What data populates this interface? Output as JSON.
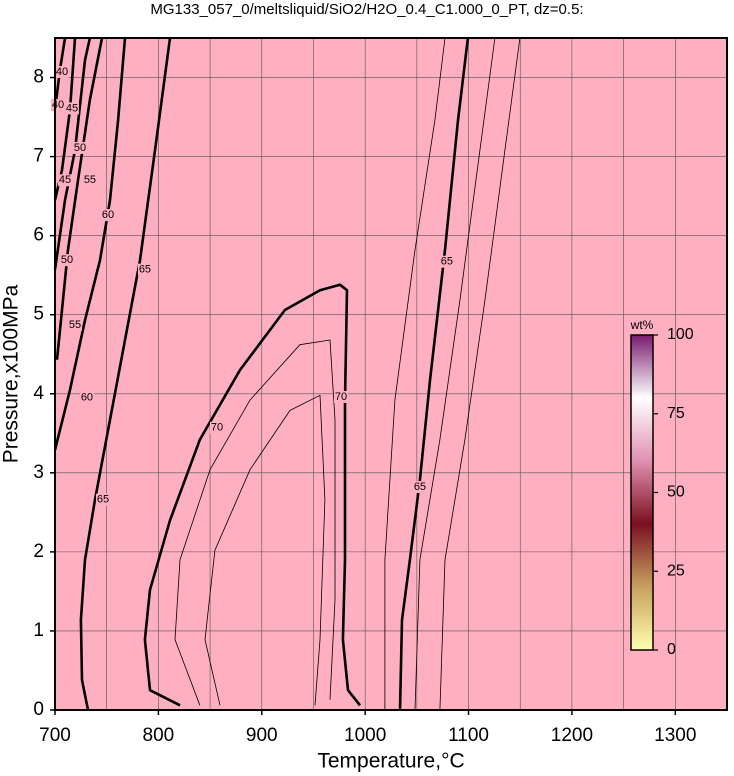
{
  "chart_data": {
    "type": "contour",
    "title": "MG133_057_0/meltsliquid/SiO2/H2O_0.4_C1.000_0_PT, dz=0.5:",
    "x_label": "Temperature,°C",
    "y_label": "Pressure,x100MPa",
    "xlim": [
      700,
      1350
    ],
    "ylim": [
      0,
      8.5
    ],
    "xticks": [
      700,
      800,
      900,
      1000,
      1100,
      1200,
      1300
    ],
    "xgrid": [
      750,
      850,
      950,
      1050,
      1150,
      1250
    ],
    "yticks": [
      0,
      1,
      2,
      3,
      4,
      5,
      6,
      7,
      8
    ],
    "grid": true,
    "background_color": "#feafc0",
    "colorbar": {
      "label": "wt%",
      "lim": [
        0,
        100
      ],
      "ticks": [
        0,
        25,
        50,
        75,
        100
      ],
      "colors": [
        "#ffffb0",
        "#c8a060",
        "#7a1020",
        "#e090b0",
        "#ffffff",
        "#7a1a70"
      ]
    },
    "contours": [
      {
        "level": 40,
        "x": [
          700,
          704.8,
          709.7
        ],
        "y": [
          7.59,
          8.1,
          8.5
        ]
      },
      {
        "level": 45,
        "x": [
          700,
          706.8,
          714.5,
          719.3
        ],
        "y": [
          6.45,
          6.83,
          7.59,
          8.5
        ]
      },
      {
        "level": 50,
        "x": [
          700,
          709.7,
          719.3,
          729,
          733.8
        ],
        "y": [
          5.57,
          6.45,
          7.08,
          8.22,
          8.5
        ]
      },
      {
        "level": 55,
        "x": [
          701.9,
          712.6,
          722.2,
          733.8,
          745.5
        ],
        "y": [
          4.43,
          5.82,
          6.7,
          7.72,
          8.5
        ]
      },
      {
        "level": 60,
        "x": [
          700,
          714.5,
          729,
          743.5,
          753.2,
          761,
          767.7
        ],
        "y": [
          3.29,
          4.05,
          4.93,
          5.69,
          6.45,
          7.46,
          8.5
        ]
      },
      {
        "level": 65,
        "x": [
          731.9,
          726.1,
          725.1,
          729,
          738.7,
          753.2,
          767.7,
          782.2,
          796.7,
          811.2
        ],
        "y": [
          0,
          0.38,
          1.14,
          1.9,
          2.66,
          3.67,
          4.68,
          5.69,
          7.08,
          8.5
        ]
      },
      {
        "level": 70,
        "x": [
          820.9,
          791.9,
          787.0,
          791.9,
          811.2,
          840.2,
          878.9,
          922.4,
          956.3,
          975.6,
          982.4,
          980.5,
          980.5,
          978.5,
          983.4,
          995.0
        ],
        "y": [
          0.06,
          0.25,
          0.89,
          1.52,
          2.4,
          3.42,
          4.3,
          5.06,
          5.31,
          5.38,
          5.31,
          3.92,
          1.9,
          0.89,
          0.25,
          0.06
        ]
      },
      {
        "level": 71,
        "x": [
          840.2,
          816.1,
          820.9,
          849.9,
          888.6,
          936.9,
          966.0,
          970.8,
          970.8,
          966.0
        ],
        "y": [
          0.06,
          0.89,
          1.9,
          3.04,
          3.92,
          4.62,
          4.68,
          3.67,
          1.39,
          0.13
        ]
      },
      {
        "level": 72,
        "x": [
          859.6,
          845.1,
          854.7,
          888.6,
          927.3,
          956.3,
          961.1,
          956.3,
          951.5
        ],
        "y": [
          0.06,
          0.89,
          2.02,
          3.04,
          3.79,
          3.98,
          2.66,
          0.89,
          0.06
        ]
      },
      {
        "level": 66,
        "x": [
          1019.1,
          1019.1,
          1028.8,
          1048.2,
          1067.5,
          1077.2
        ],
        "y": [
          0,
          1.9,
          3.92,
          5.82,
          7.46,
          8.5
        ]
      },
      {
        "level": 65,
        "x": [
          1033.7,
          1035.6,
          1043.3,
          1053,
          1062.7,
          1077.2,
          1089.8,
          1099.4
        ],
        "y": [
          0,
          1.14,
          1.9,
          2.91,
          4.17,
          5.82,
          7.46,
          8.5
        ]
      },
      {
        "level": 64,
        "x": [
          1048.2,
          1053,
          1072.3,
          1091.7,
          1111,
          1125.5
        ],
        "y": [
          0,
          1.9,
          3.42,
          5.19,
          7.08,
          8.5
        ]
      },
      {
        "level": 63,
        "x": [
          1072.3,
          1077.2,
          1096.5,
          1115.9,
          1135.2,
          1149.7
        ],
        "y": [
          0,
          1.9,
          3.42,
          5.19,
          7.08,
          8.5
        ]
      }
    ],
    "major_levels": [
      40,
      45,
      50,
      55,
      60,
      65,
      70
    ],
    "labels": [
      {
        "level": 40,
        "x": 706.8,
        "y": 8.07
      },
      {
        "level": 40,
        "x": 702.9,
        "y": 7.65
      },
      {
        "level": 45,
        "x": 716.4,
        "y": 7.61
      },
      {
        "level": 50,
        "x": 724.2,
        "y": 7.11
      },
      {
        "level": 45,
        "x": 709.7,
        "y": 6.7
      },
      {
        "level": 55,
        "x": 733.8,
        "y": 6.7
      },
      {
        "level": 60,
        "x": 751.3,
        "y": 6.26
      },
      {
        "level": 50,
        "x": 711.6,
        "y": 5.69
      },
      {
        "level": 65,
        "x": 787,
        "y": 5.57
      },
      {
        "level": 55,
        "x": 719.3,
        "y": 4.87
      },
      {
        "level": 60,
        "x": 730.9,
        "y": 3.95
      },
      {
        "level": 65,
        "x": 746.4,
        "y": 2.66
      },
      {
        "level": 70,
        "x": 856.7,
        "y": 3.57
      },
      {
        "level": 70,
        "x": 976.6,
        "y": 3.96
      },
      {
        "level": 65,
        "x": 1079.1,
        "y": 5.67
      },
      {
        "level": 65,
        "x": 1053,
        "y": 2.82
      }
    ]
  }
}
